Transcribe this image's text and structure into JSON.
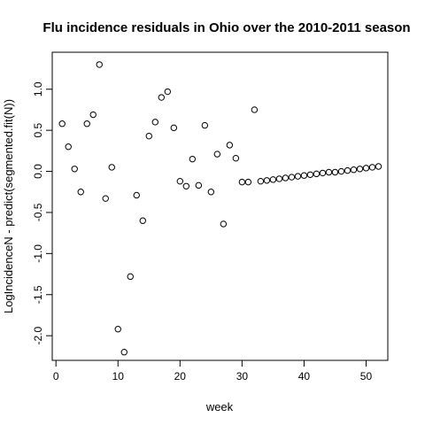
{
  "chart_data": {
    "type": "scatter",
    "title": "Flu incidence residuals in Ohio over the 2010-2011 season",
    "xlabel": "week",
    "ylabel": "LogIncidenceN - predict(segmented.fit(N))",
    "xlim": [
      -0.6,
      53.5
    ],
    "ylim": [
      -2.3,
      1.45
    ],
    "xticks": [
      0,
      10,
      20,
      30,
      40,
      50
    ],
    "xtick_labels": [
      "0",
      "10",
      "20",
      "30",
      "40",
      "50"
    ],
    "yticks": [
      -2.0,
      -1.5,
      -1.0,
      -0.5,
      0.0,
      0.5,
      1.0
    ],
    "ytick_labels": [
      "-2.0",
      "-1.5",
      "-1.0",
      "-0.5",
      "0.0",
      "0.5",
      "1.0"
    ],
    "grid": false,
    "legend": "none",
    "marker": "open-circle",
    "x": [
      1,
      2,
      3,
      4,
      5,
      6,
      7,
      8,
      9,
      10,
      11,
      12,
      13,
      14,
      15,
      16,
      17,
      18,
      19,
      20,
      21,
      22,
      23,
      24,
      25,
      26,
      27,
      28,
      29,
      30,
      31,
      32,
      33,
      34,
      35,
      36,
      37,
      38,
      39,
      40,
      41,
      42,
      43,
      44,
      45,
      46,
      47,
      48,
      49,
      50,
      51,
      52
    ],
    "y": [
      0.58,
      0.3,
      0.03,
      -0.25,
      0.58,
      0.69,
      1.3,
      -0.33,
      0.05,
      -1.92,
      -2.2,
      -1.28,
      -0.29,
      -0.6,
      0.43,
      0.6,
      0.9,
      0.97,
      0.53,
      -0.12,
      -0.18,
      0.15,
      -0.17,
      0.56,
      -0.25,
      0.21,
      -0.64,
      0.32,
      0.16,
      -0.13,
      -0.13,
      0.75,
      -0.12,
      -0.11,
      -0.1,
      -0.09,
      -0.08,
      -0.07,
      -0.06,
      -0.05,
      -0.04,
      -0.03,
      -0.02,
      -0.01,
      -0.01,
      0.0,
      0.01,
      0.02,
      0.03,
      0.04,
      0.05,
      0.06
    ]
  }
}
